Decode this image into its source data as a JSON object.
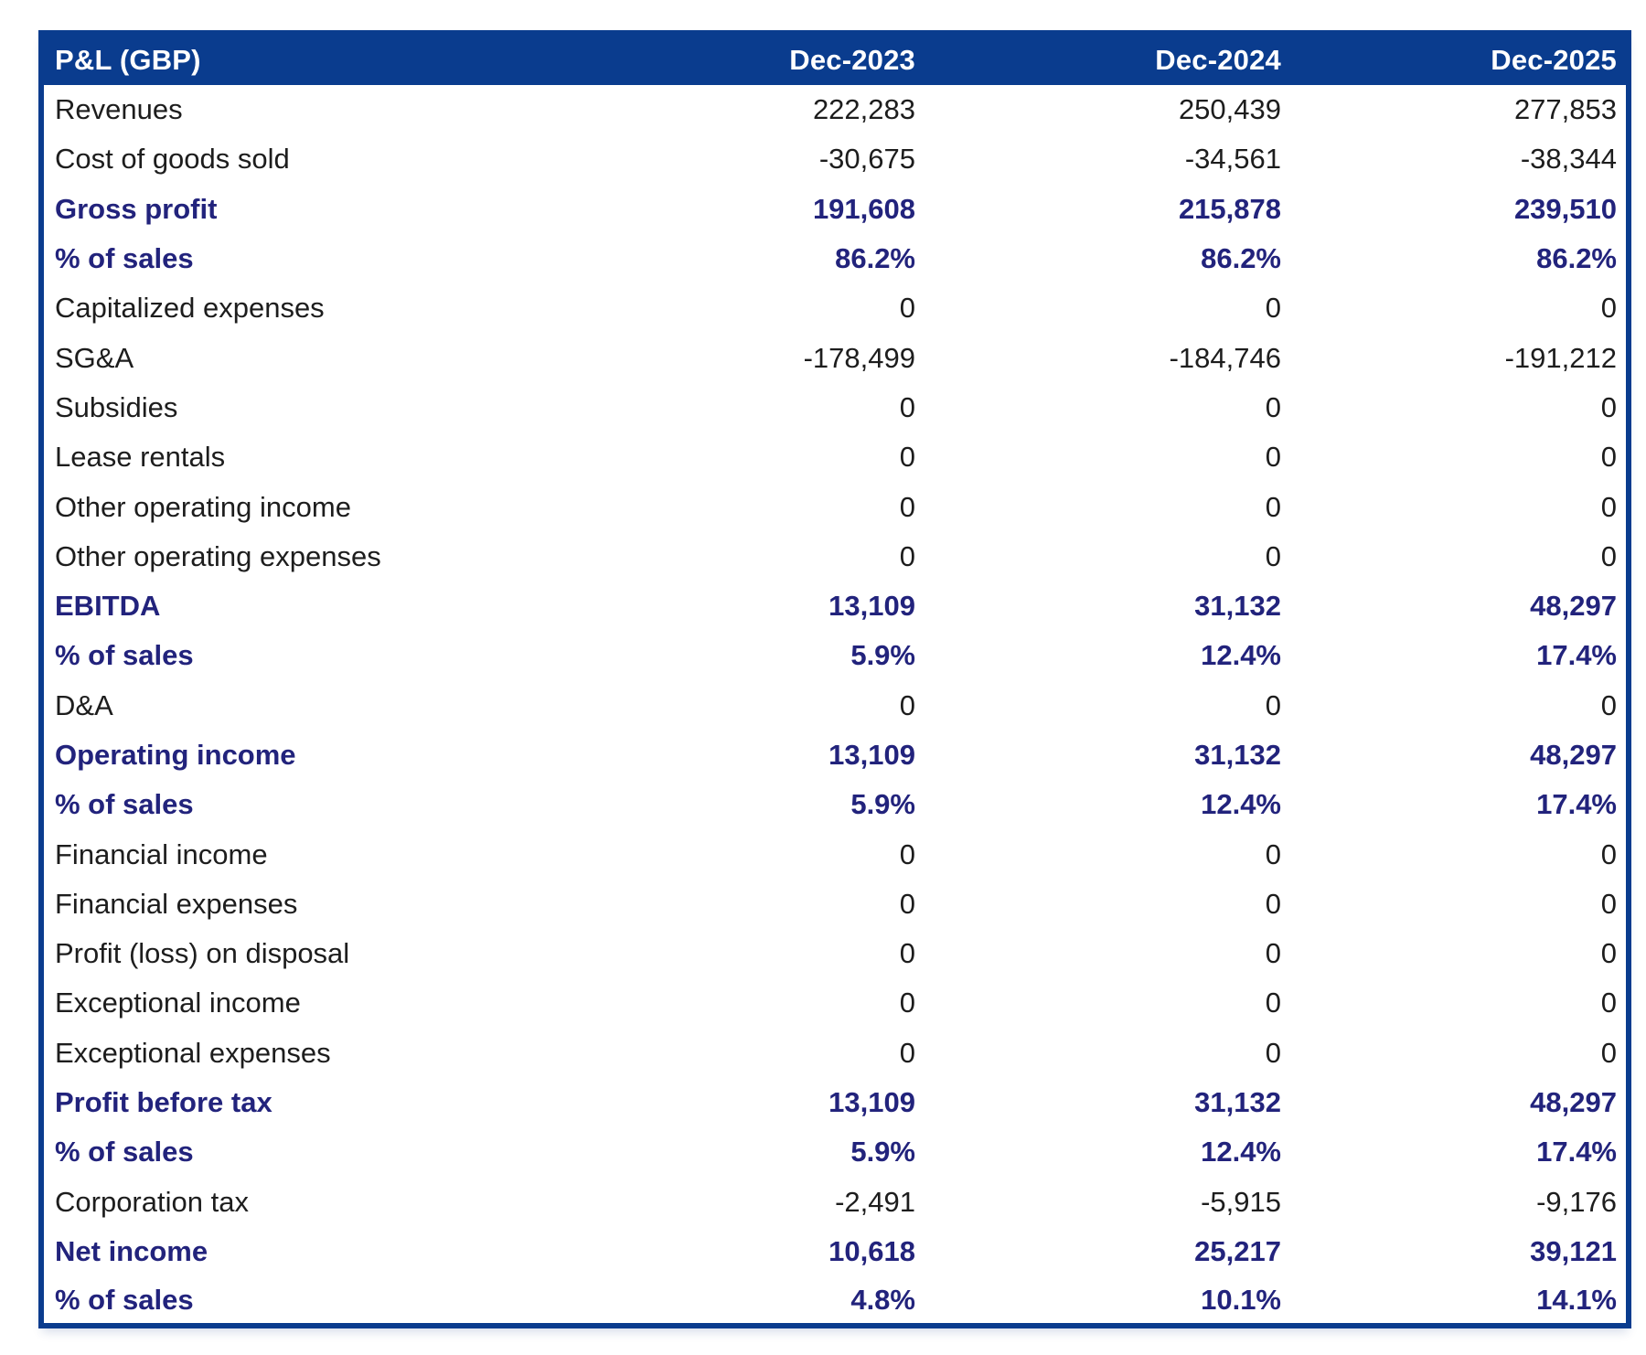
{
  "chart_data": {
    "type": "table",
    "title": "P&L (GBP)",
    "currency": "GBP",
    "columns": [
      "Dec-2023",
      "Dec-2024",
      "Dec-2025"
    ],
    "rows": [
      {
        "label": "Revenues",
        "values": [
          "222,283",
          "250,439",
          "277,853"
        ],
        "bold": false
      },
      {
        "label": "Cost of goods sold",
        "values": [
          "-30,675",
          "-34,561",
          "-38,344"
        ],
        "bold": false
      },
      {
        "label": "Gross profit",
        "values": [
          "191,608",
          "215,878",
          "239,510"
        ],
        "bold": true
      },
      {
        "label": "% of sales",
        "values": [
          "86.2%",
          "86.2%",
          "86.2%"
        ],
        "bold": true
      },
      {
        "label": "Capitalized expenses",
        "values": [
          "0",
          "0",
          "0"
        ],
        "bold": false
      },
      {
        "label": "SG&A",
        "values": [
          "-178,499",
          "-184,746",
          "-191,212"
        ],
        "bold": false
      },
      {
        "label": "Subsidies",
        "values": [
          "0",
          "0",
          "0"
        ],
        "bold": false
      },
      {
        "label": "Lease rentals",
        "values": [
          "0",
          "0",
          "0"
        ],
        "bold": false
      },
      {
        "label": "Other operating income",
        "values": [
          "0",
          "0",
          "0"
        ],
        "bold": false
      },
      {
        "label": "Other operating expenses",
        "values": [
          "0",
          "0",
          "0"
        ],
        "bold": false
      },
      {
        "label": "EBITDA",
        "values": [
          "13,109",
          "31,132",
          "48,297"
        ],
        "bold": true
      },
      {
        "label": "% of sales",
        "values": [
          "5.9%",
          "12.4%",
          "17.4%"
        ],
        "bold": true
      },
      {
        "label": "D&A",
        "values": [
          "0",
          "0",
          "0"
        ],
        "bold": false
      },
      {
        "label": "Operating income",
        "values": [
          "13,109",
          "31,132",
          "48,297"
        ],
        "bold": true
      },
      {
        "label": "% of sales",
        "values": [
          "5.9%",
          "12.4%",
          "17.4%"
        ],
        "bold": true
      },
      {
        "label": "Financial income",
        "values": [
          "0",
          "0",
          "0"
        ],
        "bold": false
      },
      {
        "label": "Financial expenses",
        "values": [
          "0",
          "0",
          "0"
        ],
        "bold": false
      },
      {
        "label": "Profit (loss) on disposal",
        "values": [
          "0",
          "0",
          "0"
        ],
        "bold": false
      },
      {
        "label": "Exceptional income",
        "values": [
          "0",
          "0",
          "0"
        ],
        "bold": false
      },
      {
        "label": "Exceptional expenses",
        "values": [
          "0",
          "0",
          "0"
        ],
        "bold": false
      },
      {
        "label": "Profit before tax",
        "values": [
          "13,109",
          "31,132",
          "48,297"
        ],
        "bold": true
      },
      {
        "label": "% of sales",
        "values": [
          "5.9%",
          "12.4%",
          "17.4%"
        ],
        "bold": true
      },
      {
        "label": "Corporation tax",
        "values": [
          "-2,491",
          "-5,915",
          "-9,176"
        ],
        "bold": false
      },
      {
        "label": "Net income",
        "values": [
          "10,618",
          "25,217",
          "39,121"
        ],
        "bold": true
      },
      {
        "label": "% of sales",
        "values": [
          "4.8%",
          "10.1%",
          "14.1%"
        ],
        "bold": true
      }
    ],
    "layout": {
      "grid": false,
      "value_alignment": "right"
    }
  },
  "colors": {
    "header_bg": "#0a3c8e",
    "header_text": "#ffffff",
    "border": "#0a3c8e",
    "subtotal_text": "#22237c",
    "body_text": "#1d1d1d",
    "row_bg": "#ffffff"
  }
}
